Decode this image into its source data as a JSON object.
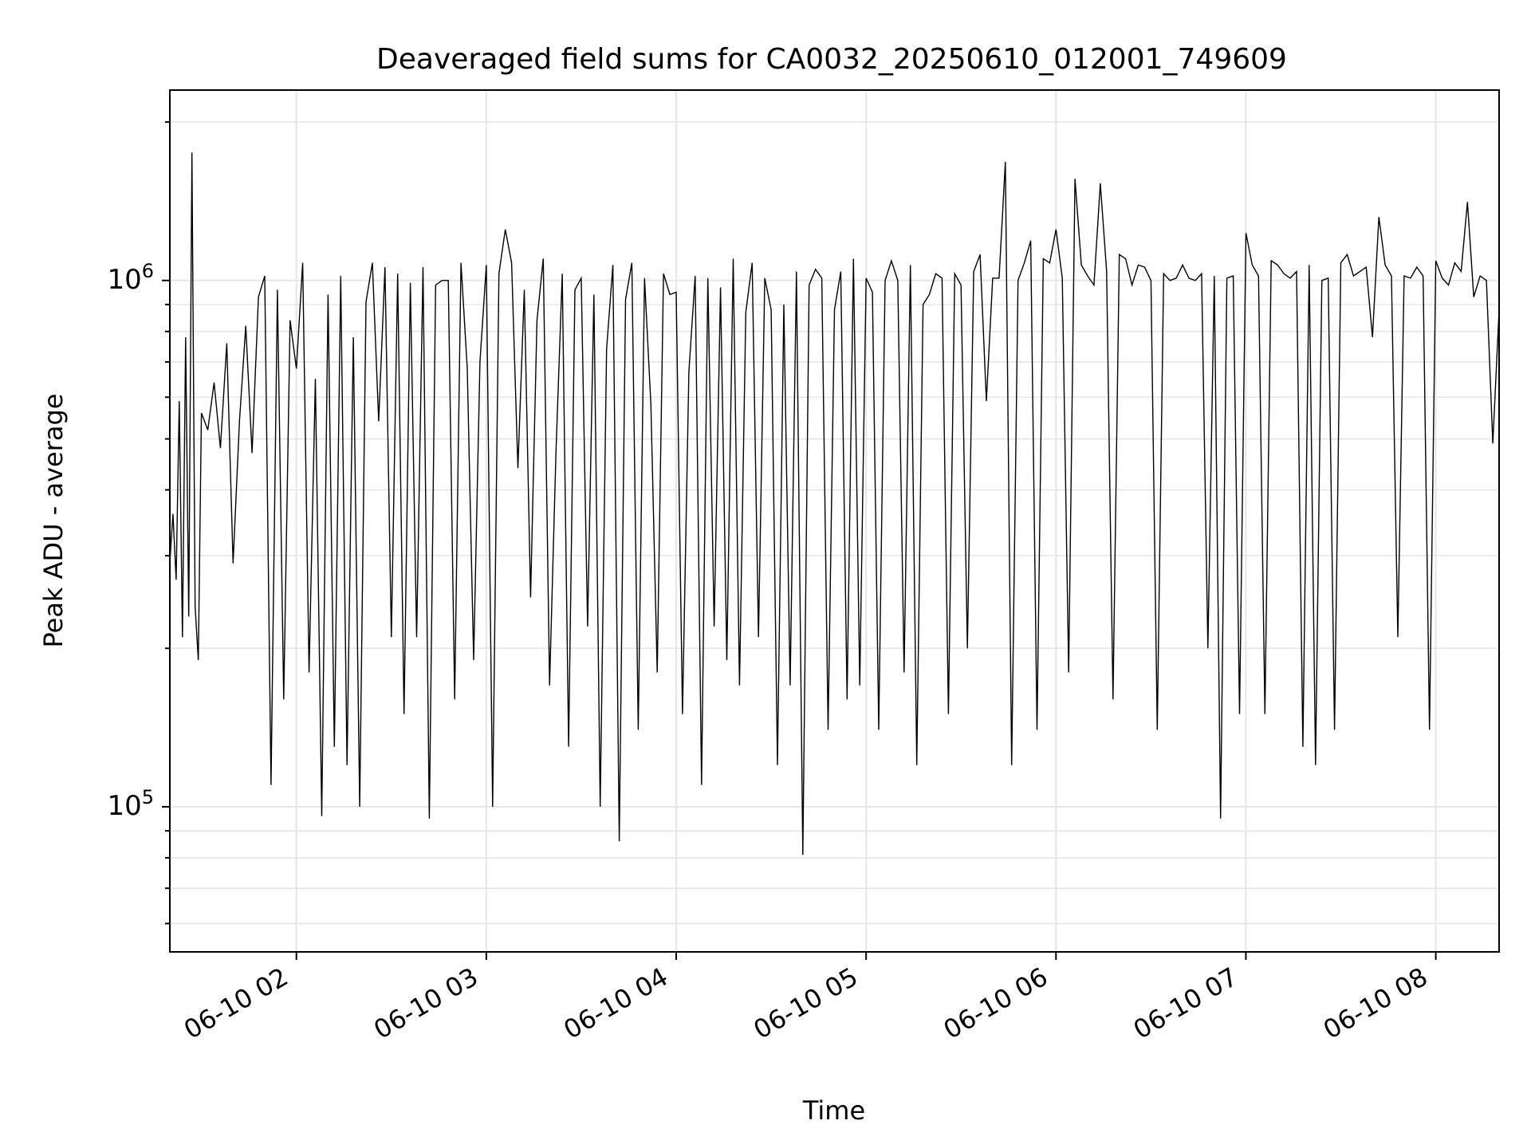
{
  "chart_data": {
    "type": "line",
    "title": "Deaveraged field sums for CA0032_20250610_012001_749609",
    "xlabel": "Time",
    "ylabel": "Peak ADU - average",
    "yscale": "log",
    "xlim": [
      "2025-06-10 01:20:01",
      "2025-06-10 08:20:00"
    ],
    "ylim": [
      53000,
      2300000
    ],
    "grid": true,
    "legend": "none",
    "line_color": "#000000",
    "x_ticks": [
      "06-10 02",
      "06-10 03",
      "06-10 04",
      "06-10 05",
      "06-10 06",
      "06-10 07",
      "06-10 08"
    ],
    "x_tick_values": [
      "2025-06-10 02:00",
      "2025-06-10 03:00",
      "2025-06-10 04:00",
      "2025-06-10 05:00",
      "2025-06-10 06:00",
      "2025-06-10 07:00",
      "2025-06-10 08:00"
    ],
    "y_ticks": [
      {
        "value": 100000,
        "base": "10",
        "exp": "5"
      },
      {
        "value": 1000000,
        "base": "10",
        "exp": "6"
      }
    ],
    "series": [
      {
        "x": [
          "2025-06-10 01:20",
          "2025-06-10 01:21",
          "2025-06-10 01:22",
          "2025-06-10 01:23",
          "2025-06-10 01:24",
          "2025-06-10 01:25",
          "2025-06-10 01:26",
          "2025-06-10 01:27",
          "2025-06-10 01:28",
          "2025-06-10 01:29",
          "2025-06-10 01:30",
          "2025-06-10 01:32",
          "2025-06-10 01:34",
          "2025-06-10 01:36",
          "2025-06-10 01:38",
          "2025-06-10 01:40",
          "2025-06-10 01:42",
          "2025-06-10 01:44",
          "2025-06-10 01:46",
          "2025-06-10 01:48",
          "2025-06-10 01:50",
          "2025-06-10 01:52",
          "2025-06-10 01:54",
          "2025-06-10 01:56",
          "2025-06-10 01:58",
          "2025-06-10 02:00",
          "2025-06-10 02:02",
          "2025-06-10 02:04",
          "2025-06-10 02:06",
          "2025-06-10 02:08",
          "2025-06-10 02:10",
          "2025-06-10 02:12",
          "2025-06-10 02:14",
          "2025-06-10 02:16",
          "2025-06-10 02:18",
          "2025-06-10 02:20",
          "2025-06-10 02:22",
          "2025-06-10 02:24",
          "2025-06-10 02:26",
          "2025-06-10 02:28",
          "2025-06-10 02:30",
          "2025-06-10 02:32",
          "2025-06-10 02:34",
          "2025-06-10 02:36",
          "2025-06-10 02:38",
          "2025-06-10 02:40",
          "2025-06-10 02:42",
          "2025-06-10 02:44",
          "2025-06-10 02:46",
          "2025-06-10 02:48",
          "2025-06-10 02:50",
          "2025-06-10 02:52",
          "2025-06-10 02:54",
          "2025-06-10 02:56",
          "2025-06-10 02:58",
          "2025-06-10 03:00",
          "2025-06-10 03:02",
          "2025-06-10 03:04",
          "2025-06-10 03:06",
          "2025-06-10 03:08",
          "2025-06-10 03:10",
          "2025-06-10 03:12",
          "2025-06-10 03:14",
          "2025-06-10 03:16",
          "2025-06-10 03:18",
          "2025-06-10 03:20",
          "2025-06-10 03:22",
          "2025-06-10 03:24",
          "2025-06-10 03:26",
          "2025-06-10 03:28",
          "2025-06-10 03:30",
          "2025-06-10 03:32",
          "2025-06-10 03:34",
          "2025-06-10 03:36",
          "2025-06-10 03:38",
          "2025-06-10 03:40",
          "2025-06-10 03:42",
          "2025-06-10 03:44",
          "2025-06-10 03:46",
          "2025-06-10 03:48",
          "2025-06-10 03:50",
          "2025-06-10 03:52",
          "2025-06-10 03:54",
          "2025-06-10 03:56",
          "2025-06-10 03:58",
          "2025-06-10 04:00",
          "2025-06-10 04:02",
          "2025-06-10 04:04",
          "2025-06-10 04:06",
          "2025-06-10 04:08",
          "2025-06-10 04:10",
          "2025-06-10 04:12",
          "2025-06-10 04:14",
          "2025-06-10 04:16",
          "2025-06-10 04:18",
          "2025-06-10 04:20",
          "2025-06-10 04:22",
          "2025-06-10 04:24",
          "2025-06-10 04:26",
          "2025-06-10 04:28",
          "2025-06-10 04:30",
          "2025-06-10 04:32",
          "2025-06-10 04:34",
          "2025-06-10 04:36",
          "2025-06-10 04:38",
          "2025-06-10 04:40",
          "2025-06-10 04:42",
          "2025-06-10 04:44",
          "2025-06-10 04:46",
          "2025-06-10 04:48",
          "2025-06-10 04:50",
          "2025-06-10 04:52",
          "2025-06-10 04:54",
          "2025-06-10 04:56",
          "2025-06-10 04:58",
          "2025-06-10 05:00",
          "2025-06-10 05:02",
          "2025-06-10 05:04",
          "2025-06-10 05:06",
          "2025-06-10 05:08",
          "2025-06-10 05:10",
          "2025-06-10 05:12",
          "2025-06-10 05:14",
          "2025-06-10 05:16",
          "2025-06-10 05:18",
          "2025-06-10 05:20",
          "2025-06-10 05:22",
          "2025-06-10 05:24",
          "2025-06-10 05:26",
          "2025-06-10 05:28",
          "2025-06-10 05:30",
          "2025-06-10 05:32",
          "2025-06-10 05:34",
          "2025-06-10 05:36",
          "2025-06-10 05:38",
          "2025-06-10 05:40",
          "2025-06-10 05:42",
          "2025-06-10 05:44",
          "2025-06-10 05:46",
          "2025-06-10 05:48",
          "2025-06-10 05:50",
          "2025-06-10 05:52",
          "2025-06-10 05:54",
          "2025-06-10 05:56",
          "2025-06-10 05:58",
          "2025-06-10 06:00",
          "2025-06-10 06:02",
          "2025-06-10 06:04",
          "2025-06-10 06:06",
          "2025-06-10 06:08",
          "2025-06-10 06:10",
          "2025-06-10 06:12",
          "2025-06-10 06:14",
          "2025-06-10 06:16",
          "2025-06-10 06:18",
          "2025-06-10 06:20",
          "2025-06-10 06:22",
          "2025-06-10 06:24",
          "2025-06-10 06:26",
          "2025-06-10 06:28",
          "2025-06-10 06:30",
          "2025-06-10 06:32",
          "2025-06-10 06:34",
          "2025-06-10 06:36",
          "2025-06-10 06:38",
          "2025-06-10 06:40",
          "2025-06-10 06:42",
          "2025-06-10 06:44",
          "2025-06-10 06:46",
          "2025-06-10 06:48",
          "2025-06-10 06:50",
          "2025-06-10 06:52",
          "2025-06-10 06:54",
          "2025-06-10 06:56",
          "2025-06-10 06:58",
          "2025-06-10 07:00",
          "2025-06-10 07:02",
          "2025-06-10 07:04",
          "2025-06-10 07:06",
          "2025-06-10 07:08",
          "2025-06-10 07:10",
          "2025-06-10 07:12",
          "2025-06-10 07:14",
          "2025-06-10 07:16",
          "2025-06-10 07:18",
          "2025-06-10 07:20",
          "2025-06-10 07:22",
          "2025-06-10 07:24",
          "2025-06-10 07:26",
          "2025-06-10 07:28",
          "2025-06-10 07:30",
          "2025-06-10 07:32",
          "2025-06-10 07:34",
          "2025-06-10 07:36",
          "2025-06-10 07:38",
          "2025-06-10 07:40",
          "2025-06-10 07:42",
          "2025-06-10 07:44",
          "2025-06-10 07:46",
          "2025-06-10 07:48",
          "2025-06-10 07:50",
          "2025-06-10 07:52",
          "2025-06-10 07:54",
          "2025-06-10 07:56",
          "2025-06-10 07:58",
          "2025-06-10 08:00",
          "2025-06-10 08:02",
          "2025-06-10 08:04",
          "2025-06-10 08:06",
          "2025-06-10 08:08",
          "2025-06-10 08:10",
          "2025-06-10 08:12",
          "2025-06-10 08:14",
          "2025-06-10 08:16",
          "2025-06-10 08:18",
          "2025-06-10 08:20"
        ],
        "values": [
          290000,
          360000,
          270000,
          590000,
          210000,
          780000,
          230000,
          1750000,
          240000,
          190000,
          560000,
          520000,
          640000,
          480000,
          760000,
          290000,
          540000,
          820000,
          470000,
          930000,
          1020000,
          110000,
          960000,
          160000,
          840000,
          680000,
          1080000,
          180000,
          650000,
          96000,
          940000,
          130000,
          1020000,
          120000,
          780000,
          100000,
          910000,
          1080000,
          540000,
          1060000,
          210000,
          1030000,
          150000,
          990000,
          210000,
          1060000,
          95000,
          980000,
          1000000,
          1000000,
          160000,
          1080000,
          680000,
          190000,
          700000,
          1070000,
          100000,
          1030000,
          1250000,
          1080000,
          440000,
          960000,
          250000,
          840000,
          1100000,
          170000,
          470000,
          1030000,
          130000,
          960000,
          1010000,
          220000,
          940000,
          100000,
          740000,
          1070000,
          86000,
          920000,
          1080000,
          140000,
          1010000,
          580000,
          180000,
          1030000,
          940000,
          950000,
          150000,
          670000,
          1020000,
          110000,
          1010000,
          220000,
          970000,
          190000,
          1100000,
          170000,
          870000,
          1080000,
          210000,
          1010000,
          880000,
          120000,
          900000,
          170000,
          1040000,
          81000,
          980000,
          1050000,
          1010000,
          140000,
          880000,
          1040000,
          160000,
          1100000,
          170000,
          1010000,
          950000,
          140000,
          1000000,
          1090000,
          1000000,
          180000,
          1070000,
          120000,
          900000,
          940000,
          1030000,
          1010000,
          150000,
          1030000,
          980000,
          200000,
          1040000,
          1120000,
          590000,
          1010000,
          1010000,
          1680000,
          120000,
          1000000,
          1080000,
          1190000,
          140000,
          1100000,
          1080000,
          1250000,
          1010000,
          180000,
          1560000,
          1070000,
          1020000,
          980000,
          1530000,
          1040000,
          160000,
          1120000,
          1100000,
          980000,
          1070000,
          1060000,
          1000000,
          140000,
          1030000,
          1000000,
          1010000,
          1070000,
          1010000,
          1000000,
          1030000,
          200000,
          1020000,
          95000,
          1010000,
          1020000,
          150000,
          1230000,
          1070000,
          1020000,
          150000,
          1090000,
          1070000,
          1030000,
          1010000,
          1040000,
          130000,
          1070000,
          120000,
          1000000,
          1010000,
          140000,
          1080000,
          1120000,
          1020000,
          1040000,
          1060000,
          780000,
          1320000,
          1070000,
          1020000,
          210000,
          1020000,
          1010000,
          1060000,
          1020000,
          140000,
          1090000,
          1010000,
          980000,
          1080000,
          1040000,
          1410000,
          930000,
          1020000,
          1000000,
          490000,
          880000
        ]
      }
    ]
  }
}
